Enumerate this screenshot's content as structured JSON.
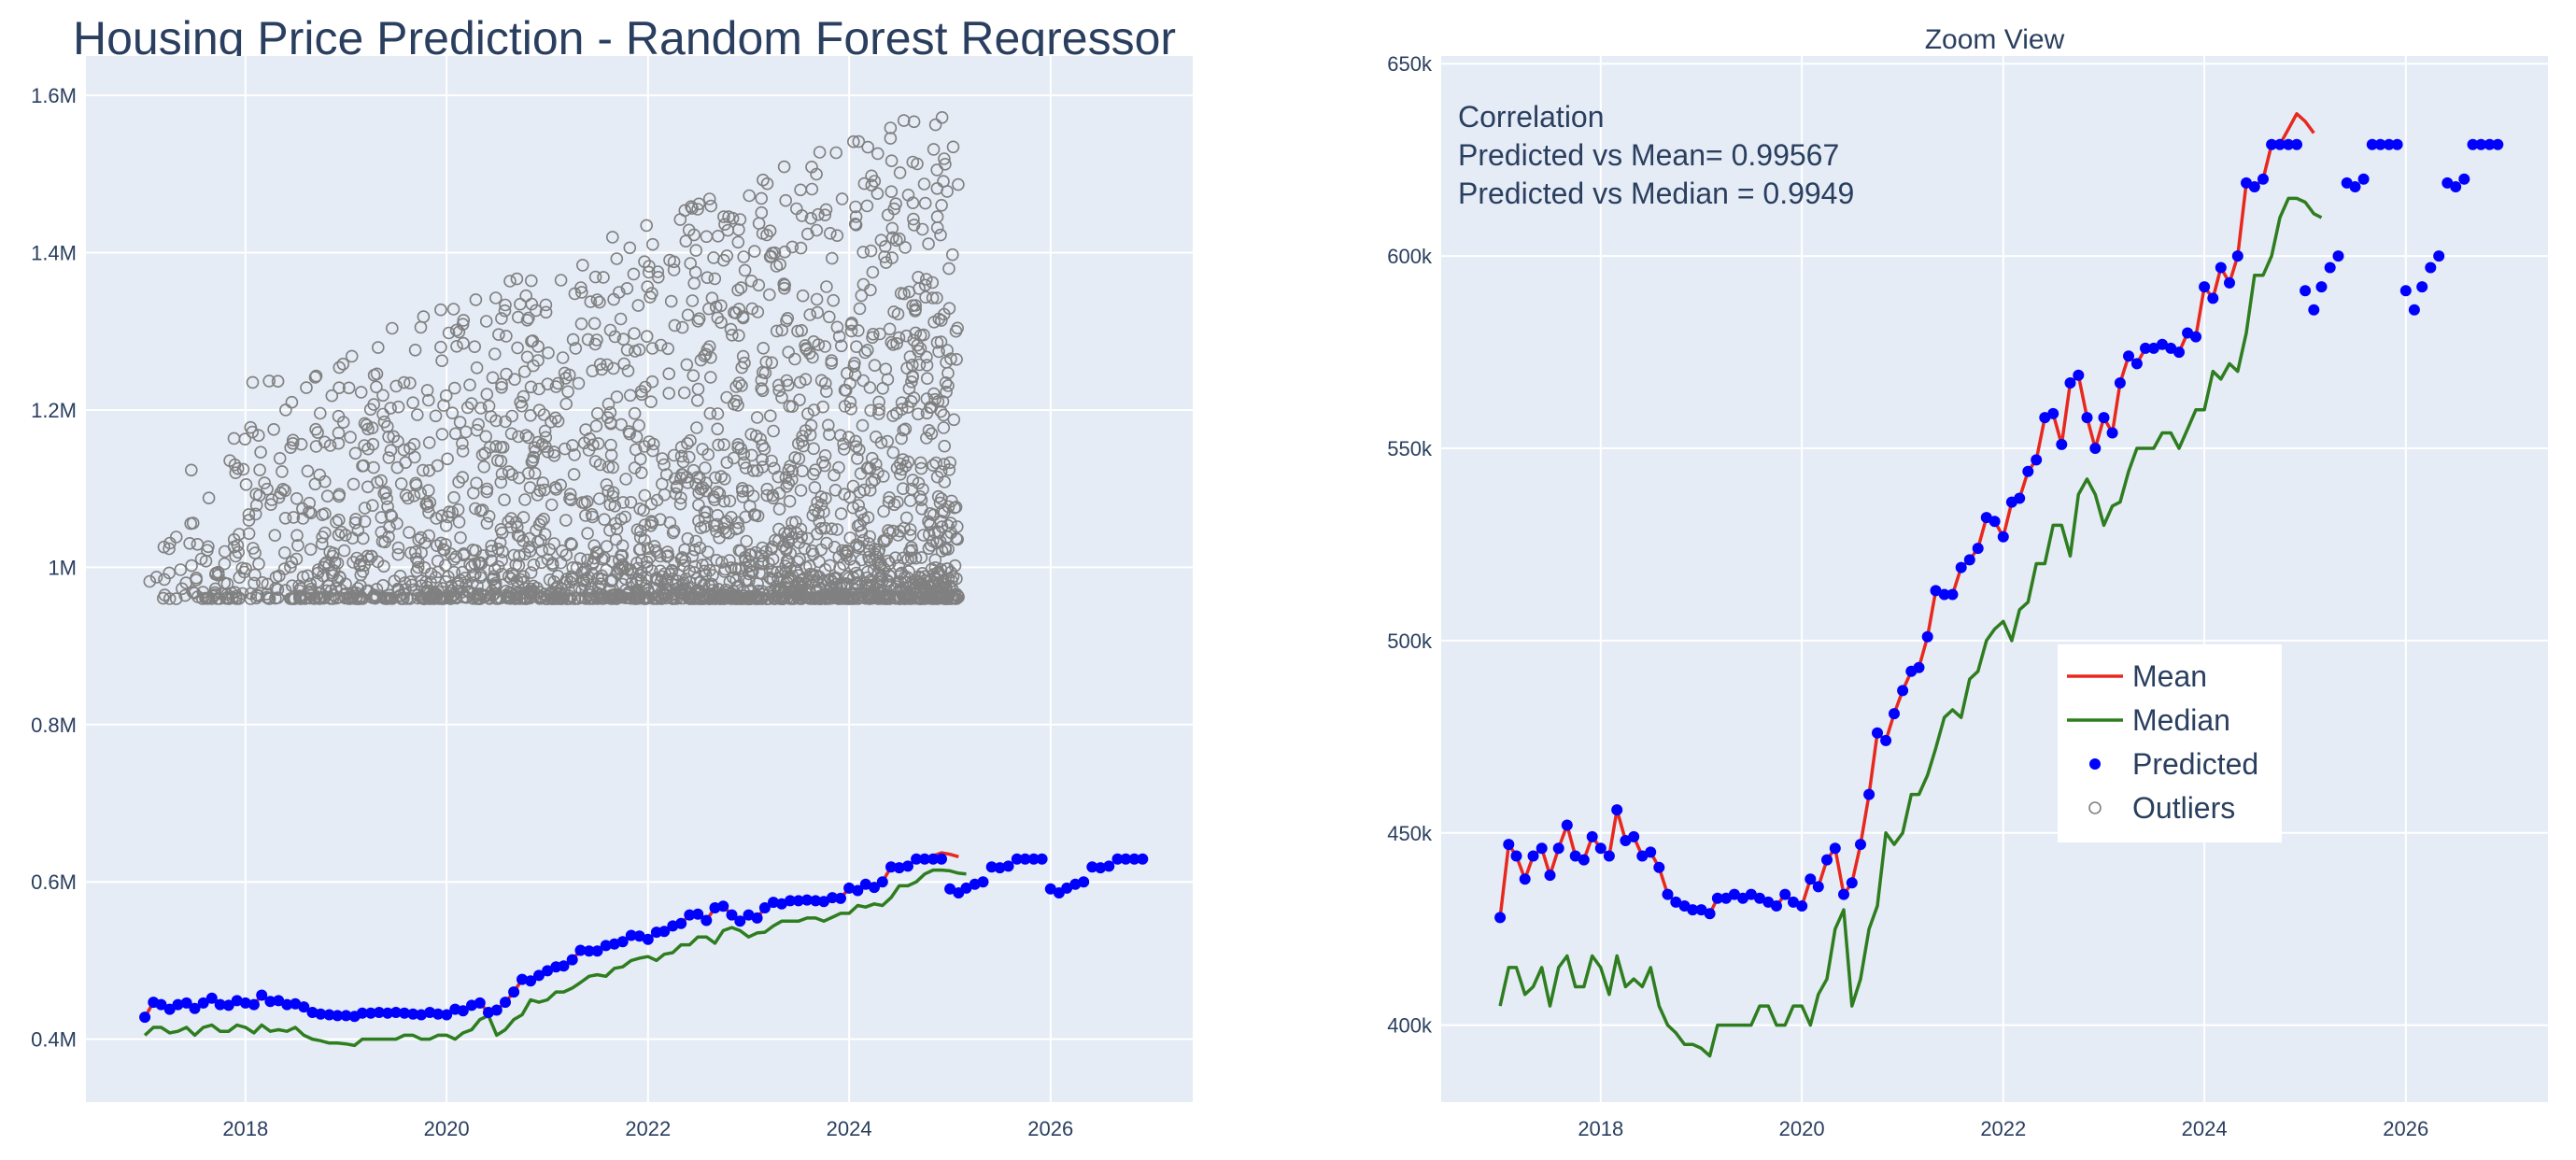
{
  "title": "Housing Price Prediction - Random Forest Regressor",
  "colors": {
    "plot_bg": "#e5ecf6",
    "grid": "#ffffff",
    "text": "#2a3f5f",
    "mean": "#e8281e",
    "median": "#2e7d1f",
    "predicted": "#0000ff",
    "outliers": "#808080"
  },
  "legend": {
    "items": [
      {
        "label": "Mean",
        "kind": "line",
        "color": "#e8281e"
      },
      {
        "label": "Median",
        "kind": "line",
        "color": "#2e7d1f"
      },
      {
        "label": "Predicted",
        "kind": "marker",
        "color": "#0000ff"
      },
      {
        "label": "Outliers",
        "kind": "open-marker",
        "color": "#808080"
      }
    ]
  },
  "annotation": {
    "lines": [
      "Correlation",
      "Predicted vs Mean= 0.99567",
      "Predicted vs Median = 0.9949"
    ]
  },
  "chart_data": [
    {
      "type": "scatter",
      "title": "Housing Price Prediction - Random Forest Regressor",
      "x_type": "date",
      "xlim": [
        "2016-06-01",
        "2027-06-01"
      ],
      "ylim": [
        320000,
        1650000
      ],
      "x_ticks": [
        {
          "value": "2018-01-01",
          "label": "2018"
        },
        {
          "value": "2020-01-01",
          "label": "2020"
        },
        {
          "value": "2022-01-01",
          "label": "2022"
        },
        {
          "value": "2024-01-01",
          "label": "2024"
        },
        {
          "value": "2026-01-01",
          "label": "2026"
        }
      ],
      "y_ticks": [
        {
          "value": 400000,
          "label": "0.4M"
        },
        {
          "value": 600000,
          "label": "0.6M"
        },
        {
          "value": 800000,
          "label": "0.8M"
        },
        {
          "value": 1000000,
          "label": "1M"
        },
        {
          "value": 1200000,
          "label": "1.2M"
        },
        {
          "value": 1400000,
          "label": "1.4M"
        },
        {
          "value": 1600000,
          "label": "1.6M"
        }
      ],
      "grid": true,
      "series": [
        "mean",
        "median",
        "predicted",
        "outliers"
      ],
      "outliers": {
        "x_start": "2017-01-01",
        "x_end": "2025-02-01",
        "y_min": 960000,
        "cap_start": 1180000,
        "cap_end": 1600000,
        "note": "approx. 2500 outlier sales above ~960k"
      }
    },
    {
      "type": "line",
      "title": "Zoom View",
      "x_type": "date",
      "xlim": [
        "2016-06-01",
        "2027-06-01"
      ],
      "ylim": [
        380000,
        652000
      ],
      "x_ticks": [
        {
          "value": "2018-01-01",
          "label": "2018"
        },
        {
          "value": "2020-01-01",
          "label": "2020"
        },
        {
          "value": "2022-01-01",
          "label": "2022"
        },
        {
          "value": "2024-01-01",
          "label": "2024"
        },
        {
          "value": "2026-01-01",
          "label": "2026"
        }
      ],
      "y_ticks": [
        {
          "value": 400000,
          "label": "400k"
        },
        {
          "value": 450000,
          "label": "450k"
        },
        {
          "value": 500000,
          "label": "500k"
        },
        {
          "value": 550000,
          "label": "550k"
        },
        {
          "value": 600000,
          "label": "600k"
        },
        {
          "value": 650000,
          "label": "650k"
        }
      ],
      "grid": true,
      "series": [
        "mean",
        "median",
        "predicted"
      ]
    }
  ],
  "series": {
    "mean": {
      "name": "Mean",
      "x_start": "2017-01-01",
      "values": [
        428000,
        447000,
        444000,
        438000,
        444000,
        446000,
        439000,
        446000,
        452000,
        444000,
        443000,
        449000,
        446000,
        444000,
        456000,
        448000,
        449000,
        444000,
        445000,
        441000,
        434000,
        432000,
        431000,
        430000,
        430000,
        429000,
        433000,
        433000,
        434000,
        433000,
        434000,
        433000,
        432000,
        431000,
        434000,
        432000,
        431000,
        438000,
        436000,
        443000,
        446000,
        434000,
        437000,
        447000,
        460000,
        476000,
        474000,
        481000,
        487000,
        492000,
        493000,
        501000,
        513000,
        512000,
        512000,
        519000,
        521000,
        524000,
        532000,
        531000,
        527000,
        536000,
        537000,
        544000,
        547000,
        558000,
        559000,
        551000,
        567000,
        569000,
        558000,
        550000,
        558000,
        554000,
        567000,
        574000,
        572000,
        576000,
        576000,
        577000,
        576000,
        575000,
        580000,
        579000,
        592000,
        589000,
        597000,
        593000,
        600000,
        619000,
        618000,
        620000,
        629000,
        629000,
        633000,
        637000,
        635000,
        632000
      ]
    },
    "median": {
      "name": "Median",
      "x_start": "2017-01-01",
      "values": [
        405000,
        415000,
        415000,
        408000,
        410000,
        415000,
        405000,
        415000,
        418000,
        410000,
        410000,
        418000,
        415000,
        408000,
        418000,
        410000,
        412000,
        410000,
        415000,
        405000,
        400000,
        398000,
        395000,
        395000,
        394000,
        392000,
        400000,
        400000,
        400000,
        400000,
        400000,
        405000,
        405000,
        400000,
        400000,
        405000,
        405000,
        400000,
        408000,
        412000,
        425000,
        430000,
        405000,
        412000,
        425000,
        431000,
        450000,
        447000,
        450000,
        460000,
        460000,
        465000,
        472000,
        480000,
        482000,
        480000,
        490000,
        492000,
        500000,
        503000,
        505000,
        500000,
        508000,
        510000,
        520000,
        520000,
        530000,
        530000,
        522000,
        538000,
        542000,
        538000,
        530000,
        535000,
        536000,
        544000,
        550000,
        550000,
        550000,
        554000,
        554000,
        550000,
        555000,
        560000,
        560000,
        570000,
        568000,
        572000,
        570000,
        580000,
        595000,
        595000,
        600000,
        610000,
        615000,
        615000,
        614000,
        611000,
        610000
      ]
    },
    "predicted": {
      "name": "Predicted",
      "x_start": "2017-01-01",
      "values": [
        428000,
        447000,
        444000,
        438000,
        444000,
        446000,
        439000,
        446000,
        452000,
        444000,
        443000,
        449000,
        446000,
        444000,
        456000,
        448000,
        449000,
        444000,
        445000,
        441000,
        434000,
        432000,
        431000,
        430000,
        430000,
        429000,
        433000,
        433000,
        434000,
        433000,
        434000,
        433000,
        432000,
        431000,
        434000,
        432000,
        431000,
        438000,
        436000,
        443000,
        446000,
        434000,
        437000,
        447000,
        460000,
        476000,
        474000,
        481000,
        487000,
        492000,
        493000,
        501000,
        513000,
        512000,
        512000,
        519000,
        521000,
        524000,
        532000,
        531000,
        527000,
        536000,
        537000,
        544000,
        547000,
        558000,
        559000,
        551000,
        567000,
        569000,
        558000,
        550000,
        558000,
        554000,
        567000,
        574000,
        572000,
        576000,
        576000,
        577000,
        576000,
        575000,
        580000,
        579000,
        592000,
        589000,
        597000,
        593000,
        600000,
        619000,
        618000,
        620000,
        629000,
        629000,
        629000,
        629000,
        591000,
        586000,
        592000,
        597000,
        600000,
        619000,
        618000,
        620000,
        629000,
        629000,
        629000,
        629000,
        591000,
        586000,
        592000,
        597000,
        600000,
        619000,
        618000,
        620000,
        629000,
        629000,
        629000,
        629000
      ]
    }
  }
}
